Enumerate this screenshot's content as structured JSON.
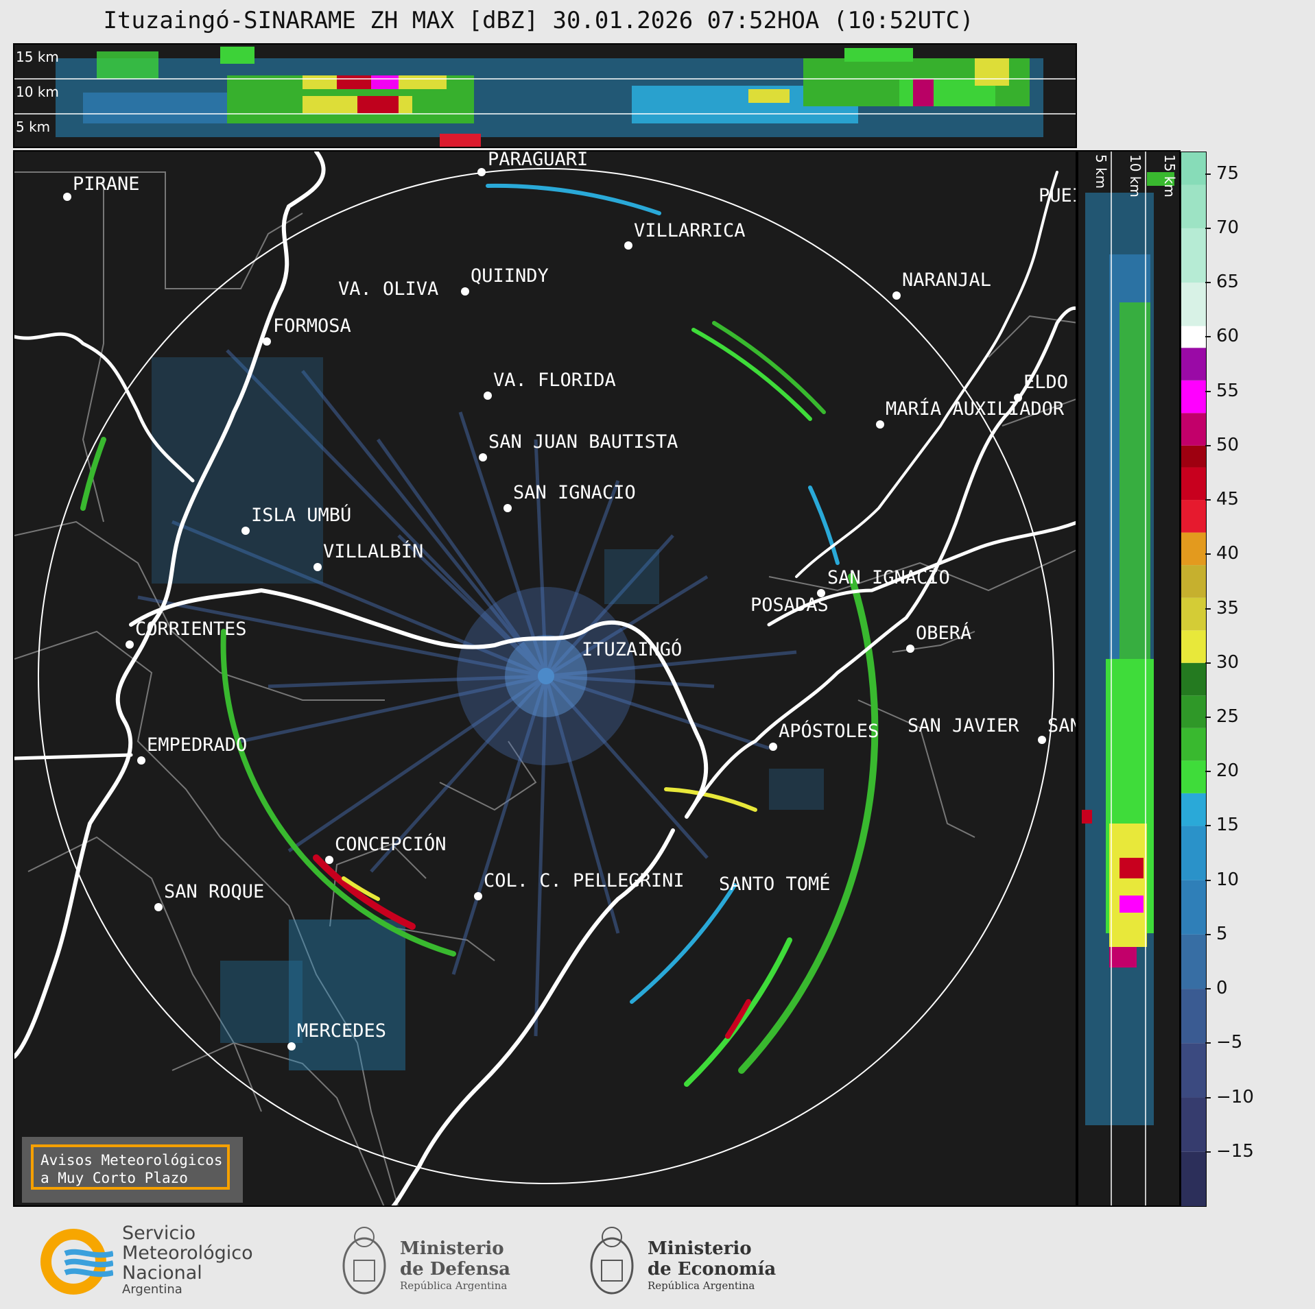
{
  "title": "Ituzaingó-SINARAME ZH MAX [dBZ] 30.01.2026 07:52HOA (10:52UTC)",
  "radar": {
    "site": "ITUZAINGÓ"
  },
  "map": {
    "cities": [
      {
        "id": "pirane",
        "name": "PIRANE"
      },
      {
        "id": "paraguari",
        "name": "PARAGUARÍ"
      },
      {
        "id": "villarrica",
        "name": "VILLARRICA"
      },
      {
        "id": "quiindy",
        "name": "QUIINDY"
      },
      {
        "id": "va-oliva",
        "name": "VA. OLIVA"
      },
      {
        "id": "formosa",
        "name": "FORMOSA"
      },
      {
        "id": "naranjal",
        "name": "NARANJAL"
      },
      {
        "id": "va-florida",
        "name": "VA. FLORIDA"
      },
      {
        "id": "eldorado",
        "name": "ELDO"
      },
      {
        "id": "maria-auxiliadora",
        "name": "MARÍA AUXILIADOR"
      },
      {
        "id": "san-juan-bautista",
        "name": "SAN JUAN BAUTISTA"
      },
      {
        "id": "san-ignacio-py",
        "name": "SAN IGNACIO"
      },
      {
        "id": "isla-umbu",
        "name": "ISLA UMBÚ"
      },
      {
        "id": "villalbin",
        "name": "VILLALBÍN"
      },
      {
        "id": "san-ignacio-ar",
        "name": "SAN IGNACIO"
      },
      {
        "id": "posadas",
        "name": "POSADAS"
      },
      {
        "id": "corrientes",
        "name": "CORRIENTES"
      },
      {
        "id": "obera",
        "name": "OBERÁ"
      },
      {
        "id": "ituzaingo",
        "name": "ITUZAINGÓ"
      },
      {
        "id": "apostoles",
        "name": "APÓSTOLES"
      },
      {
        "id": "san-javier",
        "name": "SAN JAVIER"
      },
      {
        "id": "san-east",
        "name": "SAN"
      },
      {
        "id": "empedrado",
        "name": "EMPEDRADO"
      },
      {
        "id": "concepcion",
        "name": "CONCEPCIÓN"
      },
      {
        "id": "col-pellegrini",
        "name": "COL. C. PELLEGRINI"
      },
      {
        "id": "santo-tome",
        "name": "SANTO TOMÉ"
      },
      {
        "id": "san-roque",
        "name": "SAN ROQUE"
      },
      {
        "id": "mercedes",
        "name": "MERCEDES"
      },
      {
        "id": "puerto",
        "name": "PUEI"
      }
    ]
  },
  "cross_section_top": {
    "labels": [
      "15 km",
      "10 km",
      "5 km"
    ]
  },
  "cross_section_side": {
    "labels": [
      "5 km",
      "10 km",
      "15 km"
    ]
  },
  "colorbar": {
    "unit": "dBZ",
    "ticks": [
      "75",
      "70",
      "65",
      "60",
      "55",
      "50",
      "45",
      "40",
      "35",
      "30",
      "25",
      "20",
      "15",
      "10",
      "5",
      "0",
      "−5",
      "−10",
      "−15"
    ],
    "range": [
      -20,
      77
    ],
    "colors": [
      {
        "from": -20,
        "color": "#2c2f5a"
      },
      {
        "from": -15,
        "color": "#363c6e"
      },
      {
        "from": -10,
        "color": "#3b4a80"
      },
      {
        "from": -5,
        "color": "#3a5b92"
      },
      {
        "from": 0,
        "color": "#376ea4"
      },
      {
        "from": 5,
        "color": "#2f7fb8"
      },
      {
        "from": 10,
        "color": "#2a92c9"
      },
      {
        "from": 15,
        "color": "#2aa9d8"
      },
      {
        "from": 18,
        "color": "#3fdc3a"
      },
      {
        "from": 21,
        "color": "#39b92f"
      },
      {
        "from": 24,
        "color": "#2f9828"
      },
      {
        "from": 27,
        "color": "#247a20"
      },
      {
        "from": 30,
        "color": "#e8e83a"
      },
      {
        "from": 33,
        "color": "#d4cc36"
      },
      {
        "from": 36,
        "color": "#c6b02e"
      },
      {
        "from": 39,
        "color": "#e39a1e"
      },
      {
        "from": 42,
        "color": "#e61a2e"
      },
      {
        "from": 45,
        "color": "#c8001e"
      },
      {
        "from": 48,
        "color": "#9e0010"
      },
      {
        "from": 50,
        "color": "#c2006a"
      },
      {
        "from": 53,
        "color": "#ff00ff"
      },
      {
        "from": 56,
        "color": "#9a0aa6"
      },
      {
        "from": 59,
        "color": "#ffffff"
      },
      {
        "from": 61,
        "color": "#d8f2e6"
      },
      {
        "from": 65,
        "color": "#b6ebd4"
      },
      {
        "from": 70,
        "color": "#9de3c4"
      },
      {
        "from": 74,
        "color": "#87dcb8"
      }
    ]
  },
  "warning_box": {
    "line1": "Avisos Meteorológicos",
    "line2": "a Muy Corto Plazo"
  },
  "footer": {
    "smn": {
      "l1": "Servicio",
      "l2": "Meteorológico",
      "l3": "Nacional",
      "l4": "Argentina"
    },
    "defensa": {
      "l1": "Ministerio",
      "l2": "de Defensa",
      "l3": "República Argentina"
    },
    "economia": {
      "l1": "Ministerio",
      "l2": "de Economía",
      "l3": "República Argentina"
    }
  }
}
